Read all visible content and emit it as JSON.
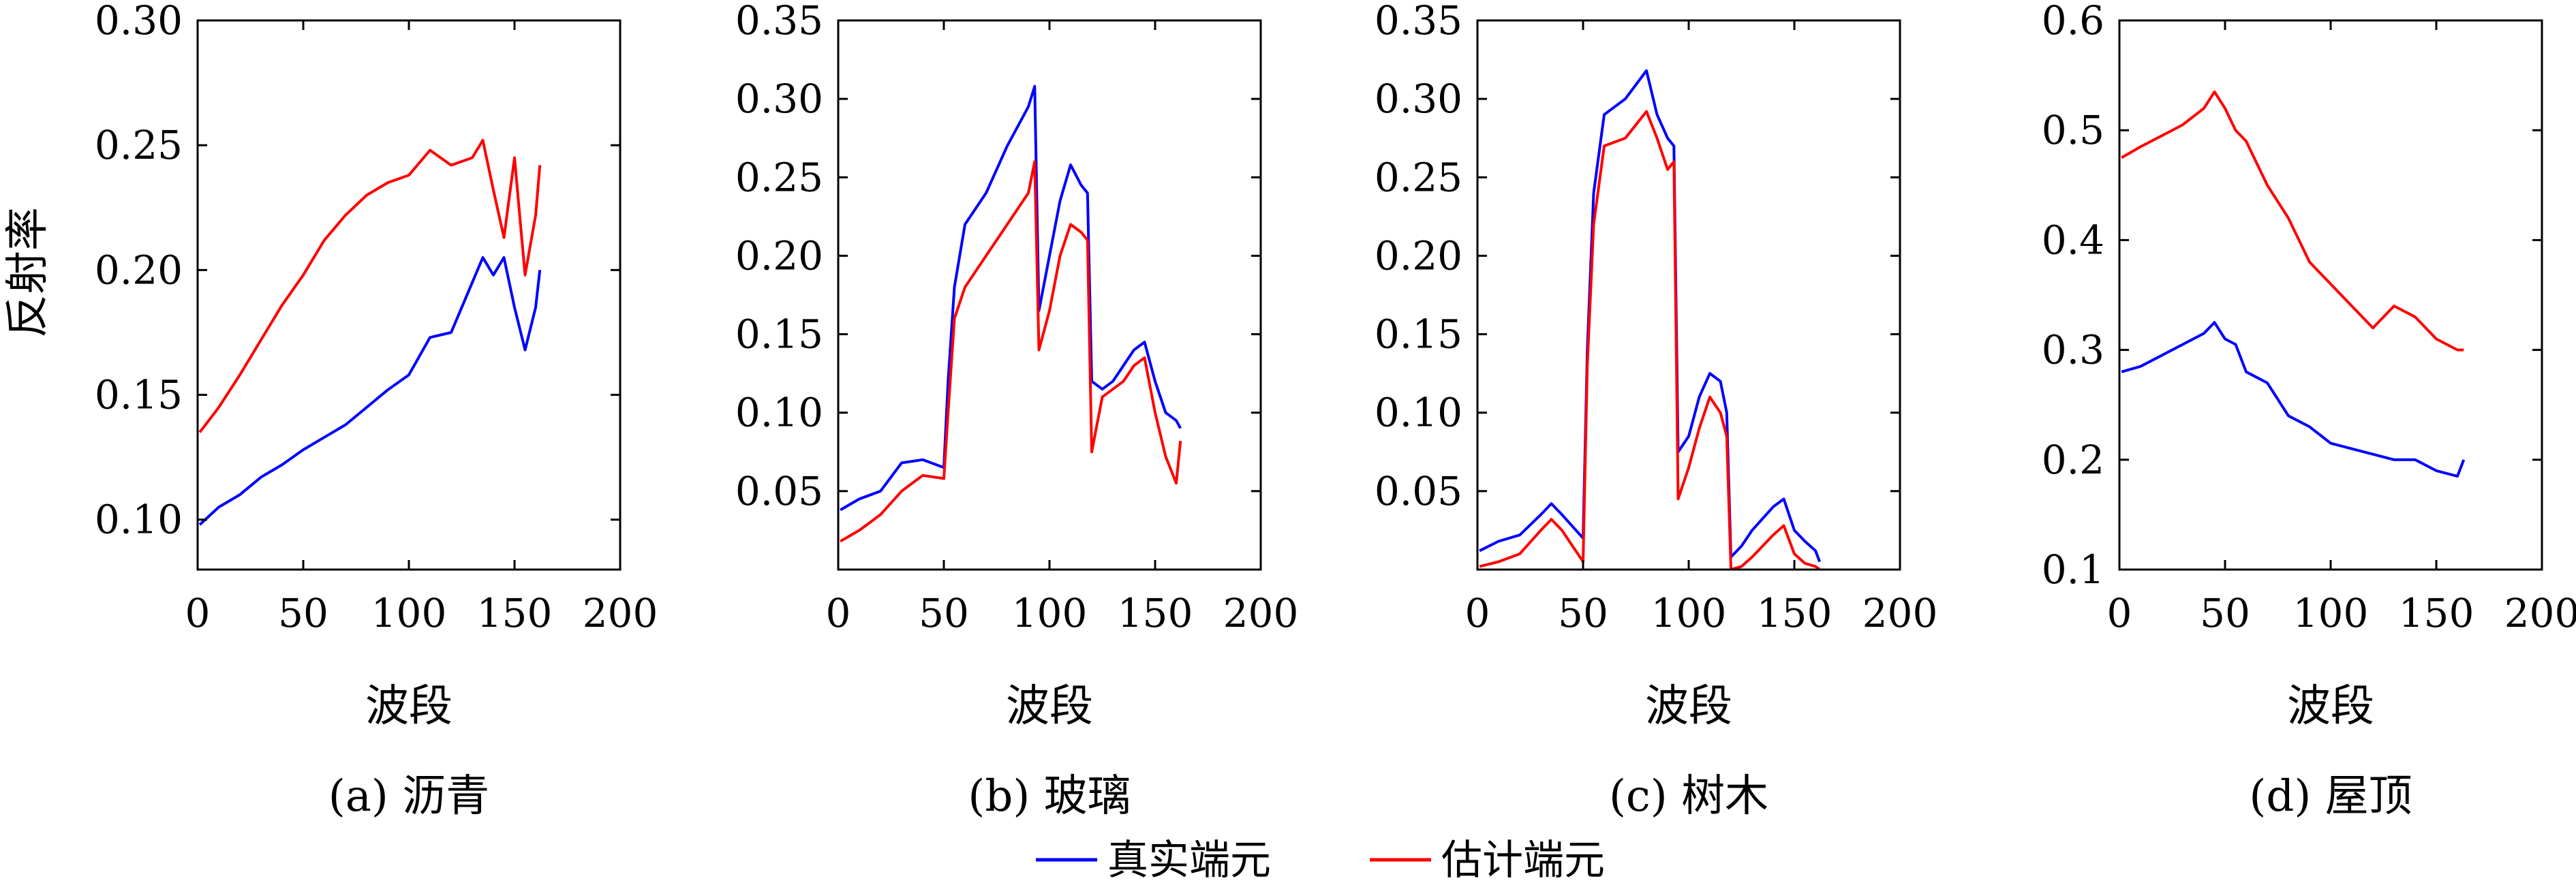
{
  "legend": {
    "entries": [
      {
        "name": "真实端元",
        "color": "#0000ff"
      },
      {
        "name": "估计端元",
        "color": "#ff0000"
      }
    ]
  },
  "figure": {
    "ylabel": "反射率"
  },
  "chart_data": [
    {
      "type": "line",
      "caption": "(a) 沥青",
      "xlabel": "波段",
      "ylabel": "反射率",
      "xlim": [
        0,
        200
      ],
      "ylim": [
        0.08,
        0.3
      ],
      "xticks": [
        "0",
        "50",
        "100",
        "150",
        "200"
      ],
      "yticks": [
        "0.10",
        "0.15",
        "0.20",
        "0.25",
        "0.30"
      ],
      "x": [
        1,
        10,
        20,
        30,
        40,
        50,
        60,
        70,
        80,
        90,
        100,
        110,
        120,
        130,
        135,
        140,
        145,
        150,
        155,
        160,
        162
      ],
      "series": [
        {
          "name": "真实端元",
          "color": "#0000ff",
          "values": [
            0.098,
            0.105,
            0.11,
            0.117,
            0.122,
            0.128,
            0.133,
            0.138,
            0.145,
            0.152,
            0.158,
            0.173,
            0.175,
            0.195,
            0.205,
            0.198,
            0.205,
            0.185,
            0.168,
            0.185,
            0.2
          ]
        },
        {
          "name": "估计端元",
          "color": "#ff0000",
          "values": [
            0.135,
            0.145,
            0.158,
            0.172,
            0.186,
            0.198,
            0.212,
            0.222,
            0.23,
            0.235,
            0.238,
            0.248,
            0.242,
            0.245,
            0.252,
            0.232,
            0.213,
            0.245,
            0.198,
            0.222,
            0.242
          ]
        }
      ]
    },
    {
      "type": "line",
      "caption": "(b) 玻璃",
      "xlabel": "波段",
      "xlim": [
        0,
        200
      ],
      "ylim": [
        0,
        0.35
      ],
      "xticks": [
        "0",
        "50",
        "100",
        "150",
        "200"
      ],
      "yticks": [
        "0.05",
        "0.10",
        "0.15",
        "0.20",
        "0.25",
        "0.30",
        "0.35"
      ],
      "x": [
        1,
        10,
        20,
        30,
        40,
        50,
        52,
        55,
        60,
        70,
        80,
        90,
        93,
        95,
        100,
        105,
        110,
        115,
        118,
        120,
        125,
        130,
        135,
        140,
        145,
        150,
        155,
        160,
        162
      ],
      "series": [
        {
          "name": "真实端元",
          "color": "#0000ff",
          "values": [
            0.038,
            0.045,
            0.05,
            0.068,
            0.07,
            0.065,
            0.12,
            0.18,
            0.22,
            0.24,
            0.27,
            0.295,
            0.308,
            0.165,
            0.2,
            0.235,
            0.258,
            0.245,
            0.24,
            0.12,
            0.115,
            0.12,
            0.13,
            0.14,
            0.145,
            0.12,
            0.1,
            0.095,
            0.09
          ]
        },
        {
          "name": "估计端元",
          "color": "#ff0000",
          "values": [
            0.018,
            0.025,
            0.035,
            0.05,
            0.06,
            0.058,
            0.1,
            0.16,
            0.18,
            0.2,
            0.22,
            0.24,
            0.26,
            0.14,
            0.165,
            0.2,
            0.22,
            0.215,
            0.21,
            0.075,
            0.11,
            0.115,
            0.12,
            0.13,
            0.135,
            0.1,
            0.072,
            0.055,
            0.082
          ]
        }
      ]
    },
    {
      "type": "line",
      "caption": "(c) 树木",
      "xlabel": "波段",
      "xlim": [
        0,
        200
      ],
      "ylim": [
        0,
        0.35
      ],
      "xticks": [
        "0",
        "50",
        "100",
        "150",
        "200"
      ],
      "yticks": [
        "0.05",
        "0.10",
        "0.15",
        "0.20",
        "0.25",
        "0.30",
        "0.35"
      ],
      "x": [
        1,
        10,
        20,
        30,
        35,
        40,
        50,
        52,
        55,
        60,
        70,
        80,
        85,
        90,
        93,
        95,
        100,
        105,
        110,
        115,
        118,
        120,
        125,
        130,
        140,
        145,
        150,
        155,
        160,
        162
      ],
      "series": [
        {
          "name": "真实端元",
          "color": "#0000ff",
          "values": [
            0.012,
            0.018,
            0.022,
            0.035,
            0.042,
            0.035,
            0.02,
            0.14,
            0.24,
            0.29,
            0.3,
            0.318,
            0.29,
            0.275,
            0.27,
            0.075,
            0.085,
            0.11,
            0.125,
            0.12,
            0.1,
            0.008,
            0.015,
            0.025,
            0.04,
            0.045,
            0.025,
            0.018,
            0.012,
            0.005
          ]
        },
        {
          "name": "估计端元",
          "color": "#ff0000",
          "values": [
            0.002,
            0.005,
            0.01,
            0.025,
            0.032,
            0.025,
            0.005,
            0.13,
            0.22,
            0.27,
            0.275,
            0.292,
            0.275,
            0.255,
            0.26,
            0.045,
            0.065,
            0.09,
            0.11,
            0.1,
            0.085,
            0.0,
            0.002,
            0.008,
            0.022,
            0.028,
            0.01,
            0.004,
            0.002,
            0.0
          ]
        }
      ]
    },
    {
      "type": "line",
      "caption": "(d) 屋顶",
      "xlabel": "波段",
      "xlim": [
        0,
        200
      ],
      "ylim": [
        0.1,
        0.6
      ],
      "xticks": [
        "0",
        "50",
        "100",
        "150",
        "200"
      ],
      "yticks": [
        "0.1",
        "0.2",
        "0.3",
        "0.4",
        "0.5",
        "0.6"
      ],
      "x": [
        1,
        10,
        20,
        30,
        40,
        45,
        50,
        55,
        60,
        70,
        80,
        90,
        100,
        110,
        120,
        130,
        140,
        150,
        160,
        163
      ],
      "series": [
        {
          "name": "真实端元",
          "color": "#0000ff",
          "values": [
            0.28,
            0.285,
            0.295,
            0.305,
            0.315,
            0.325,
            0.31,
            0.305,
            0.28,
            0.27,
            0.24,
            0.23,
            0.215,
            0.21,
            0.205,
            0.2,
            0.2,
            0.19,
            0.185,
            0.2
          ]
        },
        {
          "name": "估计端元",
          "color": "#ff0000",
          "values": [
            0.475,
            0.485,
            0.495,
            0.505,
            0.52,
            0.535,
            0.52,
            0.5,
            0.49,
            0.45,
            0.42,
            0.38,
            0.36,
            0.34,
            0.32,
            0.34,
            0.33,
            0.31,
            0.3,
            0.3
          ]
        }
      ]
    }
  ]
}
